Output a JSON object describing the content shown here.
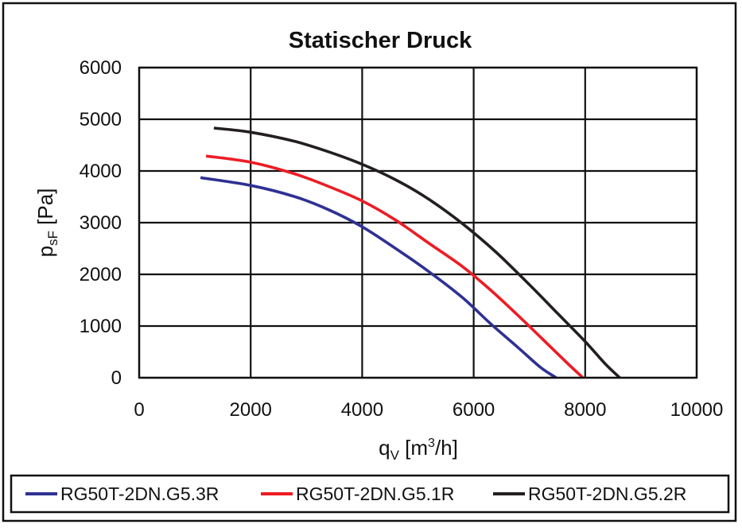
{
  "chart_data": {
    "type": "line",
    "title": "Statischer Druck",
    "xlabel": {
      "main": "q",
      "sub": "V",
      "unit_open": " [m",
      "unit_sup": "3",
      "unit_close": "/h]"
    },
    "ylabel": {
      "main": "p",
      "sub": "sF",
      "unit": " [Pa]"
    },
    "xlim": [
      0,
      10000
    ],
    "ylim": [
      0,
      6000
    ],
    "xticks": [
      0,
      2000,
      4000,
      6000,
      8000,
      10000
    ],
    "yticks": [
      0,
      1000,
      2000,
      3000,
      4000,
      5000,
      6000
    ],
    "xtick_labels": [
      "0",
      "2000",
      "4000",
      "6000",
      "8000",
      "10000"
    ],
    "ytick_labels": [
      "0",
      "1000",
      "2000",
      "3000",
      "4000",
      "5000",
      "6000"
    ],
    "grid": true,
    "legend_position": "bottom",
    "series": [
      {
        "name": "RG50T-2DN.G5.3R",
        "color": "#2e3192",
        "x": [
          1100,
          2000,
          2800,
          3400,
          4000,
          4600,
          5200,
          5800,
          6300,
          6800,
          7200,
          7480
        ],
        "y": [
          3870,
          3720,
          3500,
          3250,
          2920,
          2500,
          2050,
          1550,
          1050,
          580,
          200,
          0
        ]
      },
      {
        "name": "RG50T-2DN.G5.1R",
        "color": "#ed1c24",
        "x": [
          1200,
          2000,
          2800,
          3400,
          4000,
          4600,
          5200,
          5800,
          6300,
          6800,
          7300,
          7700,
          7960
        ],
        "y": [
          4290,
          4170,
          3940,
          3700,
          3420,
          3050,
          2600,
          2150,
          1700,
          1200,
          680,
          260,
          0
        ]
      },
      {
        "name": "RG50T-2DN.G5.2R",
        "color": "#231f20",
        "x": [
          1340,
          2000,
          2800,
          3400,
          4000,
          4600,
          5200,
          5800,
          6400,
          7000,
          7500,
          8000,
          8350,
          8620
        ],
        "y": [
          4830,
          4750,
          4570,
          4370,
          4130,
          3830,
          3450,
          2980,
          2430,
          1800,
          1250,
          700,
          280,
          0
        ]
      }
    ]
  }
}
